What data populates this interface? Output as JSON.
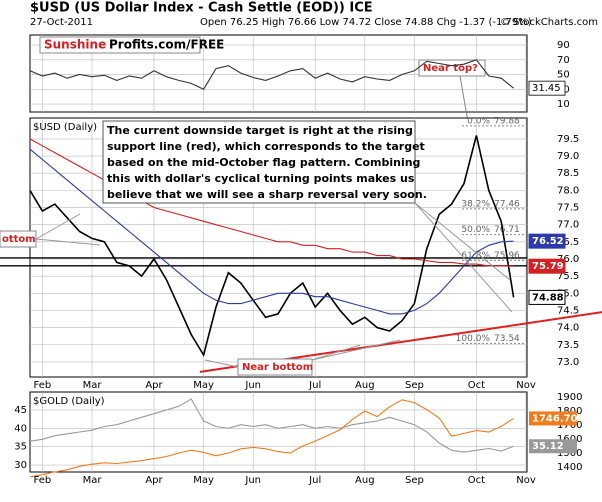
{
  "header": {
    "title": "$USD (US Dollar Index - Cash Settle (EOD)) ICE",
    "date": "27-Oct-2011",
    "quote": "Open 76.25 High 76.66 Low 74.72 Close 74.88 Chg -1.37 (-1.79%)",
    "credit": "© StockCharts.com"
  },
  "chart_data": [
    {
      "type": "line",
      "brand": [
        "Sunshine",
        "Profits.com/FREE"
      ],
      "annotation": "Near top?",
      "ylim": [
        -0.8,
        103.6
      ],
      "yticks": [
        10,
        30,
        50,
        70,
        90
      ],
      "grid": true,
      "series": [
        {
          "color": "#333333",
          "values": [
            55,
            48,
            52,
            45,
            50,
            47,
            49,
            42,
            48,
            45,
            55,
            47,
            42,
            38,
            30,
            58,
            62,
            52,
            46,
            42,
            48,
            55,
            58,
            45,
            52,
            44,
            40,
            47,
            44,
            42,
            50,
            55,
            68,
            65,
            62,
            64,
            70,
            48,
            45,
            31.45
          ]
        }
      ],
      "last_value": 31.45
    },
    {
      "type": "line",
      "title": "$USD (Daily)",
      "categories": [
        null,
        "Feb",
        null,
        null,
        null,
        "Mar",
        null,
        null,
        null,
        null,
        "Apr",
        null,
        null,
        null,
        "May",
        null,
        null,
        null,
        "Jun",
        null,
        null,
        null,
        null,
        "Jul",
        null,
        null,
        null,
        "Aug",
        null,
        null,
        null,
        "Sep",
        null,
        null,
        null,
        null,
        "Oct",
        null,
        null,
        null,
        "Nov"
      ],
      "ylim": [
        72.56,
        80.11
      ],
      "yticks": [
        {
          "value": 73,
          "label": "73.0"
        },
        73.5,
        {
          "value": 74,
          "label": "74.0"
        },
        74.5,
        {
          "value": 75,
          "label": "75.0"
        },
        75.5,
        {
          "value": 76,
          "label": "76.0"
        },
        76.5,
        {
          "value": 77,
          "label": "77.0"
        },
        77.5,
        {
          "value": 78,
          "label": "78.0"
        },
        78.5,
        {
          "value": 79,
          "label": "79.0"
        },
        79.5
      ],
      "grid": true,
      "series": [
        {
          "color": "#000000",
          "values": [
            78.0,
            77.4,
            77.6,
            77.2,
            76.8,
            76.6,
            76.5,
            75.9,
            75.8,
            75.5,
            76.0,
            75.4,
            74.6,
            73.8,
            73.2,
            74.6,
            75.6,
            75.3,
            74.8,
            74.3,
            74.4,
            75.0,
            75.3,
            74.6,
            75.0,
            74.5,
            74.1,
            74.3,
            74.0,
            73.9,
            74.2,
            74.7,
            76.3,
            77.3,
            77.6,
            78.2,
            79.6,
            78.0,
            77.1,
            74.88,
            null
          ]
        },
        {
          "color": "#2b3aa8",
          "values": [
            79.2,
            78.9,
            78.6,
            78.3,
            78.0,
            77.7,
            77.4,
            77.1,
            76.8,
            76.5,
            76.2,
            75.9,
            75.6,
            75.3,
            75.0,
            74.8,
            74.7,
            74.7,
            74.8,
            74.9,
            75.0,
            75.0,
            75.0,
            74.9,
            74.9,
            74.8,
            74.7,
            74.6,
            74.5,
            74.4,
            74.4,
            74.5,
            74.7,
            75.0,
            75.4,
            75.8,
            76.2,
            76.4,
            76.5,
            76.52,
            null
          ]
        },
        {
          "color": "#d42020",
          "values": [
            79.5,
            79.3,
            79.1,
            78.9,
            78.7,
            78.5,
            78.3,
            78.1,
            77.9,
            77.7,
            77.5,
            77.4,
            77.3,
            77.2,
            77.1,
            77.0,
            76.9,
            76.8,
            76.7,
            76.6,
            76.5,
            76.5,
            76.4,
            76.4,
            76.3,
            76.3,
            76.2,
            76.2,
            76.1,
            76.1,
            76.0,
            76.0,
            75.95,
            75.9,
            75.9,
            75.85,
            75.85,
            75.8,
            75.8,
            75.79,
            null
          ]
        }
      ],
      "fib": [
        {
          "pct": "0.0%",
          "value": 79.88
        },
        {
          "pct": "38.2%",
          "value": 77.46
        },
        {
          "pct": "50.0%",
          "value": 76.71
        },
        {
          "pct": "61.8%",
          "value": 75.96
        },
        {
          "pct": "100.0%",
          "value": 73.54
        }
      ],
      "levels": [
        76.03,
        75.8
      ],
      "support_line": [
        72.71,
        74.45
      ],
      "price_labels": [
        {
          "value": 76.52,
          "color": "#2b3aa8"
        },
        {
          "value": 75.79,
          "color": "#d42020"
        },
        {
          "value": 74.88,
          "color": "#000000"
        }
      ],
      "note": [
        "The current downside target is right at the rising",
        "support line (red), which corresponds to the target",
        "based on the mid-October flag pattern. Combining",
        "this with dollar's cyclical turning points makes us",
        "believe that we will see a sharp reversal very soon."
      ],
      "annotations": [
        "ottom",
        "Near bottom"
      ]
    },
    {
      "type": "line",
      "title": "$GOLD (Daily)",
      "ylim": [
        28.1,
        49.9
      ],
      "yticks": [
        30,
        35,
        40,
        45
      ],
      "y2lim": [
        1364,
        1935.7
      ],
      "y2ticks": [
        1400,
        1500,
        1600,
        1700,
        1800,
        1900
      ],
      "grid": true,
      "series": [
        {
          "color": "#999999",
          "values": [
            36.5,
            37.0,
            38.0,
            38.5,
            39.0,
            39.5,
            40.5,
            41,
            42,
            43,
            44,
            45,
            46,
            48,
            42,
            40.5,
            40,
            41,
            40.5,
            41,
            40,
            40.5,
            41,
            40,
            40.5,
            40,
            41,
            41.5,
            42,
            43,
            42,
            41,
            39,
            36,
            34,
            33.5,
            34,
            34.5,
            33.8,
            35.12
          ],
          "last": {
            "value": 35.12,
            "label": "35.12"
          }
        },
        {
          "color": "#f07c1c",
          "axis": "y2",
          "values": [
            1330,
            1345,
            1365,
            1380,
            1405,
            1420,
            1430,
            1425,
            1435,
            1445,
            1460,
            1475,
            1500,
            1520,
            1505,
            1480,
            1500,
            1530,
            1540,
            1530,
            1510,
            1500,
            1550,
            1585,
            1625,
            1665,
            1740,
            1800,
            1760,
            1830,
            1880,
            1860,
            1810,
            1750,
            1620,
            1640,
            1660,
            1650,
            1690,
            1746.7
          ],
          "last": {
            "value": 1746.7,
            "label": "1746.70"
          }
        }
      ]
    }
  ]
}
